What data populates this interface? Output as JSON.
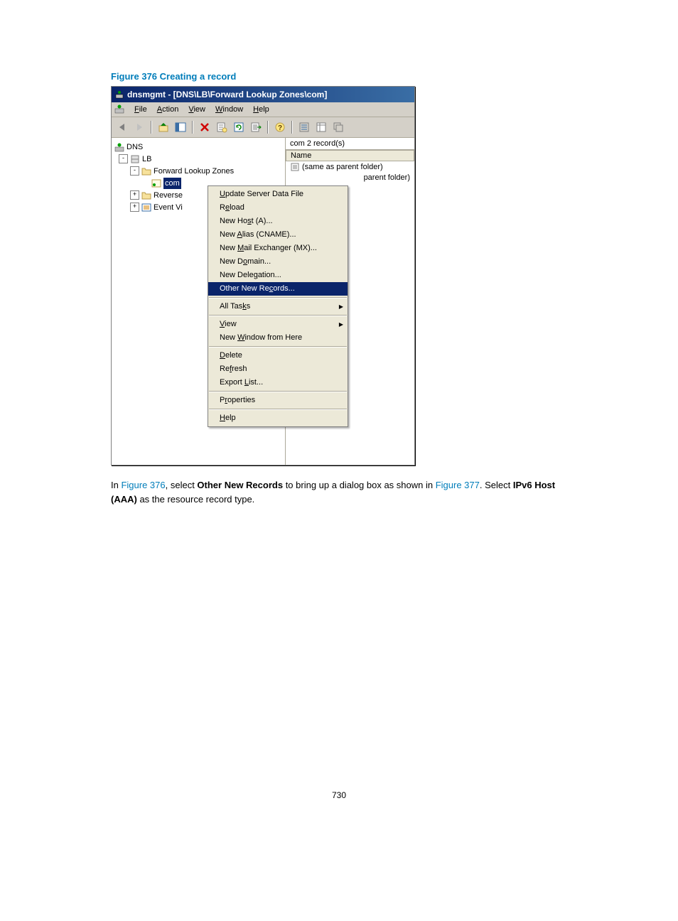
{
  "figure": {
    "caption": "Figure 376 Creating a record"
  },
  "window": {
    "title": "dnsmgmt - [DNS\\LB\\Forward Lookup Zones\\com]"
  },
  "menubar": {
    "items": [
      {
        "html": "<u>F</u>ile"
      },
      {
        "html": "<u>A</u>ction"
      },
      {
        "html": "<u>V</u>iew"
      },
      {
        "html": "<u>W</u>indow"
      },
      {
        "html": "<u>H</u>elp"
      }
    ]
  },
  "tree": {
    "root": "DNS",
    "server": "LB",
    "flz": "Forward Lookup Zones",
    "com": "com",
    "reverse": "Reverse",
    "eventvi": "Event Vi"
  },
  "list": {
    "summary": "com   2 record(s)",
    "col_name": "Name",
    "row1": "(same as parent folder)",
    "row2_suffix": "parent folder)"
  },
  "context_menu": {
    "items": [
      {
        "html": "<u>U</u>pdate Server Data File",
        "type": "item"
      },
      {
        "html": "R<u>e</u>load",
        "type": "item"
      },
      {
        "html": "New Ho<u>s</u>t (A)...",
        "type": "item"
      },
      {
        "html": "New <u>A</u>lias (CNAME)...",
        "type": "item"
      },
      {
        "html": "New <u>M</u>ail Exchanger (MX)...",
        "type": "item"
      },
      {
        "html": "New D<u>o</u>main...",
        "type": "item"
      },
      {
        "html": "New Dele<u>g</u>ation...",
        "type": "item"
      },
      {
        "html": "Other New Re<u>c</u>ords...",
        "type": "item",
        "highlight": true
      },
      {
        "type": "sep"
      },
      {
        "html": "All Tas<u>k</u>s",
        "type": "item",
        "submenu": true
      },
      {
        "type": "sep"
      },
      {
        "html": "<u>V</u>iew",
        "type": "item",
        "submenu": true
      },
      {
        "html": "New <u>W</u>indow from Here",
        "type": "item"
      },
      {
        "type": "sep"
      },
      {
        "html": "<u>D</u>elete",
        "type": "item"
      },
      {
        "html": "Re<u>f</u>resh",
        "type": "item"
      },
      {
        "html": "Export <u>L</u>ist...",
        "type": "item"
      },
      {
        "type": "sep"
      },
      {
        "html": "P<u>r</u>operties",
        "type": "item"
      },
      {
        "type": "sep"
      },
      {
        "html": "<u>H</u>elp",
        "type": "item"
      }
    ]
  },
  "body": {
    "prefix": "In ",
    "fig_link1": "Figure 376",
    "mid1": ", select ",
    "bold1": "Other New Records",
    "mid2": " to bring up a dialog box as shown in ",
    "fig_link2": "Figure 377",
    "mid3": ". Select ",
    "bold2": "IPv6 Host (AAA)",
    "suffix": " as the resource record type."
  },
  "footer": {
    "page_num": "730"
  },
  "colors": {
    "accent": "#007dba",
    "titlebar_from": "#0a246a",
    "titlebar_to": "#3a6ea5",
    "chrome": "#d4d0c8",
    "menu_bg": "#ece9d8"
  }
}
